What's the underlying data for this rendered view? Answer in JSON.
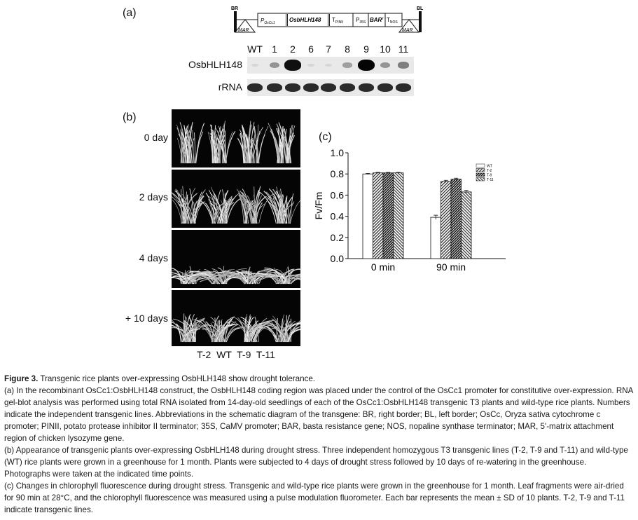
{
  "panel_a": {
    "label": "(a)",
    "construct": {
      "br": "BR",
      "bl": "BL",
      "mar": "MAR",
      "promoter_main": "P",
      "promoter_main_sub": "OsCc1",
      "gene": "OsbHLH148",
      "term1": "T",
      "term1_sub": "PINII",
      "promoter2": "P",
      "promoter2_sub": "35S",
      "bar": "BAR",
      "bar_sup": "r",
      "term2": "T",
      "term2_sub": "NOS"
    },
    "lanes": [
      "WT",
      "1",
      "2",
      "6",
      "7",
      "8",
      "9",
      "10",
      "11"
    ],
    "row_labels": [
      "OsbHLH148",
      "rRNA"
    ],
    "expression": [
      0.05,
      0.35,
      0.95,
      0.05,
      0.05,
      0.3,
      1.0,
      0.35,
      0.45
    ]
  },
  "panel_b": {
    "label": "(b)",
    "time_points": [
      "0 day",
      "2 days",
      "4 days",
      "+ 10 days"
    ],
    "lines_label": "T-2  WT  T-9  T-11"
  },
  "panel_c": {
    "label": "(c)"
  },
  "chart_data": {
    "type": "bar",
    "categories": [
      "0 min",
      "90 min"
    ],
    "series": [
      {
        "name": "WT",
        "values": [
          0.8,
          0.39
        ],
        "errors": [
          0.005,
          0.02
        ]
      },
      {
        "name": "T-2",
        "values": [
          0.81,
          0.73
        ],
        "errors": [
          0.005,
          0.01
        ]
      },
      {
        "name": "T-9",
        "values": [
          0.81,
          0.75
        ],
        "errors": [
          0.005,
          0.01
        ]
      },
      {
        "name": "T-11",
        "values": [
          0.81,
          0.63
        ],
        "errors": [
          0.005,
          0.015
        ]
      }
    ],
    "ylabel": "Fv/Fm",
    "xlabel": "",
    "ylim": [
      0,
      1.0
    ],
    "yticks": [
      "0.0",
      "0.2",
      "0.4",
      "0.6",
      "0.8",
      "1.0"
    ],
    "legend": "top-right",
    "colors": {
      "WT": "#ffffff",
      "hatch": "#333333"
    }
  },
  "caption": {
    "fig_label": "Figure 3.",
    "fig_title": "Transgenic rice plants over-expressing OsbHLH148 show drought tolerance.",
    "para_a": "(a) In the recombinant OsCc1:OsbHLH148 construct, the OsbHLH148 coding region was placed under the control of the OsCc1 promoter for constitutive over-expression. RNA gel-blot analysis was performed using total RNA isolated from 14-day-old seedlings of each of the OsCc1:OsbHLH148 transgenic T3 plants and wild-type rice plants. Numbers indicate the independent transgenic lines. Abbreviations in the schematic diagram of the transgene: BR, right border; BL, left border; OsCc, Oryza sativa cytochrome c promoter; PINII, potato protease inhibitor II terminator; 35S, CaMV promoter; BAR, basta resistance gene; NOS, nopaline synthase terminator; MAR, 5'-matrix attachment region of chicken lysozyme gene.",
    "para_b": "(b) Appearance of transgenic plants over-expressing OsbHLH148 during drought stress. Three independent homozygous T3 transgenic lines (T-2, T-9 and T-11) and wild-type (WT) rice plants were grown in a greenhouse for 1 month. Plants were subjected to 4 days of drought stress followed by 10 days of re-watering in the greenhouse. Photographs were taken at the indicated time points.",
    "para_c": "(c) Changes in chlorophyll fluorescence during drought stress. Transgenic and wild-type rice plants were grown in the greenhouse for 1 month. Leaf fragments were air-dried for 90 min at 28°C, and the chlorophyll fluorescence was measured using a pulse modulation fluorometer. Each bar represents the mean ± SD of 10 plants. T-2, T-9 and T-11 indicate transgenic lines."
  }
}
